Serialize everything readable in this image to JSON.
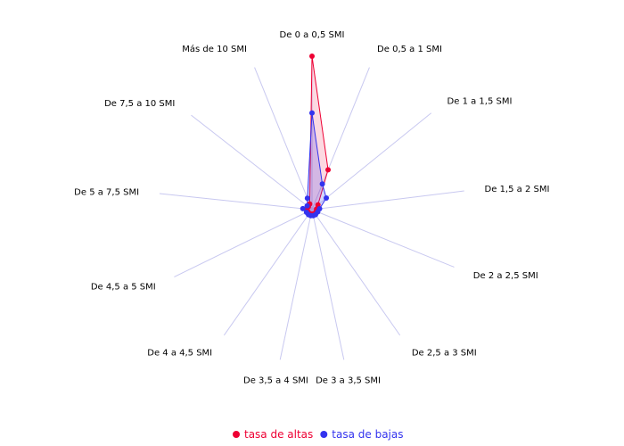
{
  "chart_data": {
    "type": "radar",
    "categories": [
      "De 0 a 0,5 SMI",
      "De 0,5 a 1 SMI",
      "De 1 a 1,5 SMI",
      "De 1,5 a 2 SMI",
      "De 2 a 2,5 SMI",
      "De 2,5 a 3 SMI",
      "De 3 a 3,5 SMI",
      "De 3,5 a 4 SMI",
      "De 4 a 4,5 SMI",
      "De 4,5 a 5 SMI",
      "De 5 a 7,5 SMI",
      "Más de 10 SMI",
      "De 7,5 a 10 SMI"
    ],
    "category_order_note": "",
    "series": [
      {
        "name": "tasa de altas",
        "color": "#ee0033",
        "values": [
          1.0,
          0.28,
          0.05,
          0.03,
          0.03,
          0.03,
          0.03,
          0.03,
          0.03,
          0.03,
          0.04,
          0.04,
          0.03
        ]
      },
      {
        "name": "tasa de bajas",
        "color": "#3333ee",
        "values": [
          0.63,
          0.18,
          0.12,
          0.05,
          0.04,
          0.04,
          0.04,
          0.04,
          0.04,
          0.04,
          0.06,
          0.08,
          0.04
        ]
      }
    ],
    "axis_color": "#c8c8f0",
    "legend_position": "bottom"
  }
}
